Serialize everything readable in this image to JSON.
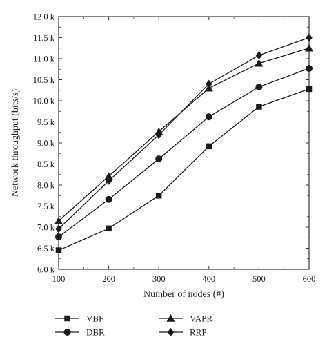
{
  "chart_data": {
    "type": "line",
    "title": "",
    "xlabel": "Number of nodes (#)",
    "ylabel": "Network throughput (bits/s)",
    "x": [
      100,
      200,
      300,
      400,
      500,
      600
    ],
    "xlim": [
      100,
      600
    ],
    "ylim": [
      6000,
      12000
    ],
    "x_ticks": [
      100,
      200,
      300,
      400,
      500,
      600
    ],
    "x_tick_labels": [
      "100",
      "200",
      "300",
      "400",
      "500",
      "600"
    ],
    "y_ticks": [
      6000,
      6500,
      7000,
      7500,
      8000,
      8500,
      9000,
      9500,
      10000,
      10500,
      11000,
      11500,
      12000
    ],
    "y_tick_labels": [
      "6.0 k",
      "6.5 k",
      "7.0 k",
      "7.5 k",
      "8.0 k",
      "8.5 k",
      "9.0 k",
      "9.5 k",
      "10.0 k",
      "10.5 k",
      "11.0 k",
      "11.5 k",
      "12.0 k"
    ],
    "grid": false,
    "legend_position": "bottom",
    "series": [
      {
        "name": "VBF",
        "marker": "square",
        "values": [
          6450,
          6970,
          7750,
          8920,
          9860,
          10280
        ]
      },
      {
        "name": "DBR",
        "marker": "circle",
        "values": [
          6770,
          7660,
          8620,
          9620,
          10330,
          10770
        ]
      },
      {
        "name": "VAPR",
        "marker": "triangle",
        "values": [
          7150,
          8210,
          9270,
          10300,
          10890,
          11250
        ]
      },
      {
        "name": "RRP",
        "marker": "diamond",
        "values": [
          6960,
          8100,
          9190,
          10400,
          11080,
          11500
        ]
      }
    ],
    "line_color": "#1a1a1a"
  }
}
